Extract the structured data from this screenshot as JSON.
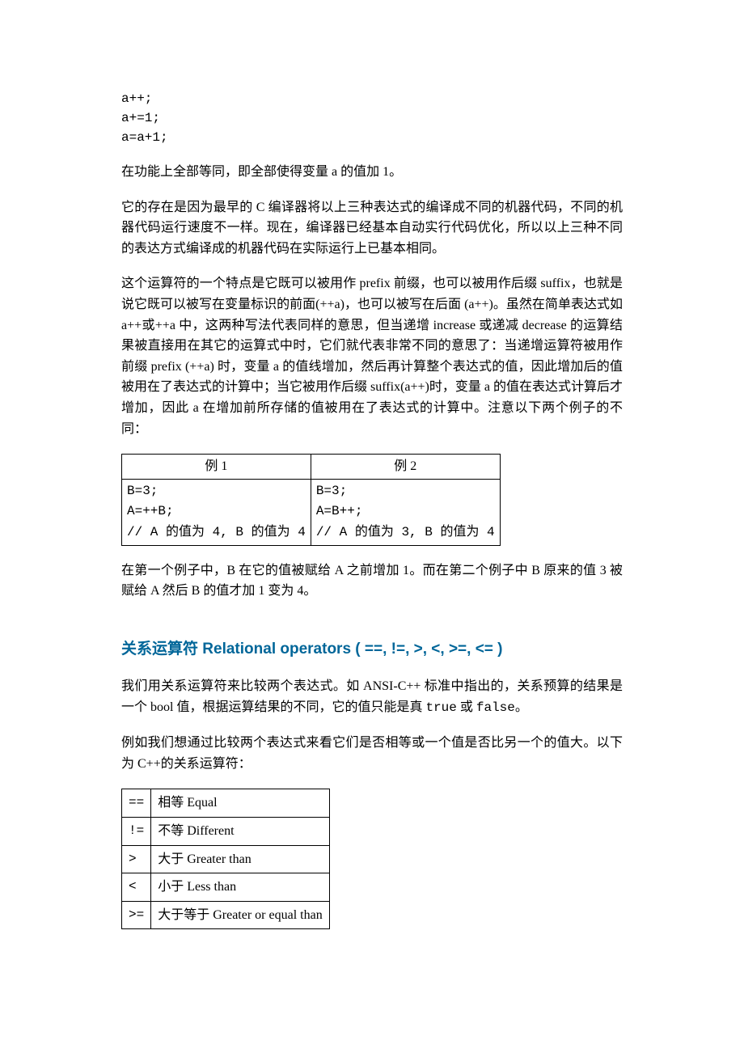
{
  "code": {
    "l1": "a++;",
    "l2": "a+=1;",
    "l3": "a=a+1;"
  },
  "para1": "在功能上全部等同，即全部使得变量 a 的值加 1。",
  "para2": "它的存在是因为最早的 C 编译器将以上三种表达式的编译成不同的机器代码，不同的机器代码运行速度不一样。现在，编译器已经基本自动实行代码优化，所以以上三种不同的表达方式编译成的机器代码在实际运行上已基本相同。",
  "para3": "这个运算符的一个特点是它既可以被用作 prefix 前缀，也可以被用作后缀 suffix，也就是说它既可以被写在变量标识的前面(++a)，也可以被写在后面 (a++)。虽然在简单表达式如 a++或++a 中，这两种写法代表同样的意思，但当递增 increase 或递减 decrease 的运算结果被直接用在其它的运算式中时，它们就代表非常不同的意思了：当递增运算符被用作前缀 prefix (++a) 时，变量 a 的值线增加，然后再计算整个表达式的值，因此增加后的值被用在了表达式的计算中；当它被用作后缀 suffix(a++)时，变量 a 的值在表达式计算后才增加，因此 a 在增加前所存储的值被用在了表达式的计算中。注意以下两个例子的不同：",
  "examples": {
    "h1": "例 1",
    "h2": "例 2",
    "c1": {
      "l1": "B=3;",
      "l2": "A=++B;",
      "l3": "// A 的值为 4, B 的值为 4"
    },
    "c2": {
      "l1": "B=3;",
      "l2": "A=B++;",
      "l3": "// A 的值为 3, B 的值为 4"
    }
  },
  "para4": "在第一个例子中，B 在它的值被赋给 A 之前增加 1。而在第二个例子中 B 原来的值 3 被赋给 A 然后 B 的值才加 1 变为 4。",
  "section": {
    "title_cn": "关系运算符",
    "title_en": "Relational operators",
    "ops": "( ==, !=, >, <, >=, <= )"
  },
  "para5_a": "我们用关系运算符来比较两个表达式。如 ANSI-C++ 标准中指出的，关系预算的结果是一个 bool 值，根据运算结果的不同，它的值只能是真 ",
  "para5_true": "true",
  "para5_mid": " 或 ",
  "para5_false": "false",
  "para5_end": "。",
  "para6": "例如我们想通过比较两个表达式来看它们是否相等或一个值是否比另一个的值大。以下为 C++的关系运算符：",
  "table": {
    "r1": {
      "op": "==",
      "desc": "相等 Equal"
    },
    "r2": {
      "op": "!=",
      "desc": "不等 Different"
    },
    "r3": {
      "op": ">",
      "desc": "大于 Greater than"
    },
    "r4": {
      "op": "<",
      "desc": "小于 Less than"
    },
    "r5": {
      "op": ">=",
      "desc": "大于等于 Greater or equal than"
    }
  }
}
